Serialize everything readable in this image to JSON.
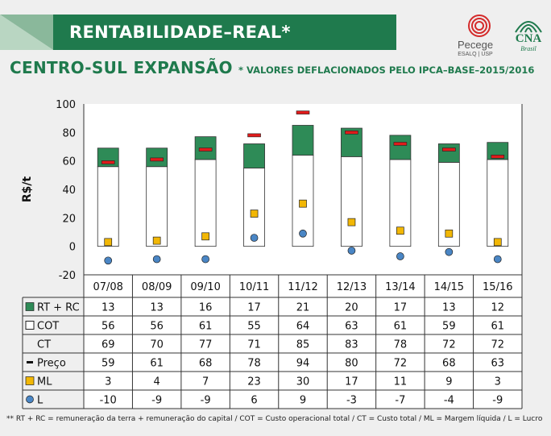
{
  "header": {
    "title": "RENTABILIDADE–REAL*",
    "page_title": "CENTRO-SUL EXPANSÃO",
    "subtitle": "* VALORES DEFLACIONADOS PELO IPCA–BASE–2015/2016"
  },
  "logos": {
    "pecege_name": "Pecege",
    "pecege_sub": "ESALQ | USP",
    "cna_name": "CNA",
    "cna_sub": "Brasil"
  },
  "colors": {
    "brand_green": "#1f7a4d",
    "rt_rc": "#2e8b57",
    "cot": "#ffffff",
    "preco": "#e01b1b",
    "ml": "#f2b705",
    "l": "#4a86c5"
  },
  "chart_data": {
    "type": "bar",
    "ylabel": "R$/t",
    "ylim": [
      -20,
      100
    ],
    "yticks": [
      -20,
      0,
      20,
      40,
      60,
      80,
      100
    ],
    "categories": [
      "07/08",
      "08/09",
      "09/10",
      "10/11",
      "11/12",
      "12/13",
      "13/14",
      "14/15",
      "15/16"
    ],
    "series": [
      {
        "name": "RT + RC",
        "marker": "green-square",
        "values": [
          13,
          13,
          16,
          17,
          21,
          20,
          17,
          13,
          12
        ]
      },
      {
        "name": "COT",
        "marker": "white-square",
        "values": [
          56,
          56,
          61,
          55,
          64,
          63,
          61,
          59,
          61
        ]
      },
      {
        "name": "CT",
        "marker": "none",
        "values": [
          69,
          70,
          77,
          71,
          85,
          83,
          78,
          72,
          72
        ]
      },
      {
        "name": "Preço",
        "marker": "red-dash",
        "values": [
          59,
          61,
          68,
          78,
          94,
          80,
          72,
          68,
          63
        ]
      },
      {
        "name": "ML",
        "marker": "yellow-square",
        "values": [
          3,
          4,
          7,
          23,
          30,
          17,
          11,
          9,
          3
        ]
      },
      {
        "name": "L",
        "marker": "blue-circle",
        "values": [
          -10,
          -9,
          -9,
          6,
          9,
          -3,
          -7,
          -4,
          -9
        ]
      }
    ],
    "grid": false,
    "legend": "data-table-below"
  },
  "footnote": "** RT + RC = remuneração da terra + remuneração do capital / COT = Custo operacional total / CT = Custo total / ML = Margem líquida / L = Lucro"
}
